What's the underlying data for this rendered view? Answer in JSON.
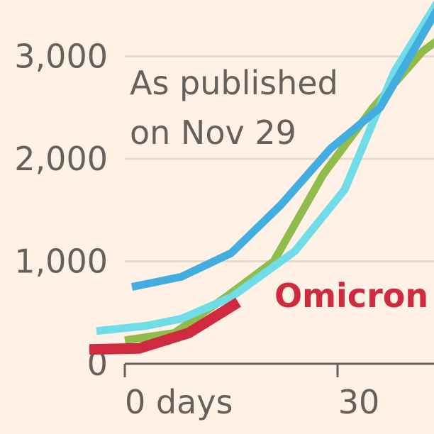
{
  "chart_data": {
    "type": "line",
    "annotation_lines": [
      "As published",
      "on Nov 29"
    ],
    "x_ticks": [
      {
        "value": 0,
        "label": "0 days"
      },
      {
        "value": 30,
        "label": "30"
      }
    ],
    "y_ticks": [
      {
        "value": 0,
        "label": "0"
      },
      {
        "value": 1000,
        "label": "1,000"
      },
      {
        "value": 2000,
        "label": "2,000"
      },
      {
        "value": 3000,
        "label": "3,000"
      }
    ],
    "xlim": [
      0,
      44
    ],
    "ylim": [
      0,
      3600
    ],
    "grid": true,
    "series": [
      {
        "color": "#8fbc4a",
        "x": [
          0,
          7,
          14,
          21,
          28,
          35,
          42,
          44
        ],
        "y": [
          230,
          300,
          640,
          1000,
          1850,
          2500,
          3050,
          3150
        ]
      },
      {
        "color": "#6fdce8",
        "x": [
          -4,
          3,
          8,
          15,
          24,
          31,
          38,
          44
        ],
        "y": [
          320,
          370,
          440,
          650,
          1100,
          1700,
          2850,
          3520
        ]
      },
      {
        "color": "#42aee0",
        "x": [
          1,
          8,
          15,
          22,
          29,
          36,
          44
        ],
        "y": [
          750,
          850,
          1080,
          1550,
          2100,
          2500,
          3450
        ]
      },
      {
        "name": "Omicron",
        "color": "#cf2a40",
        "x": [
          -5,
          2,
          9,
          16
        ],
        "y": [
          140,
          150,
          300,
          600
        ]
      }
    ]
  }
}
